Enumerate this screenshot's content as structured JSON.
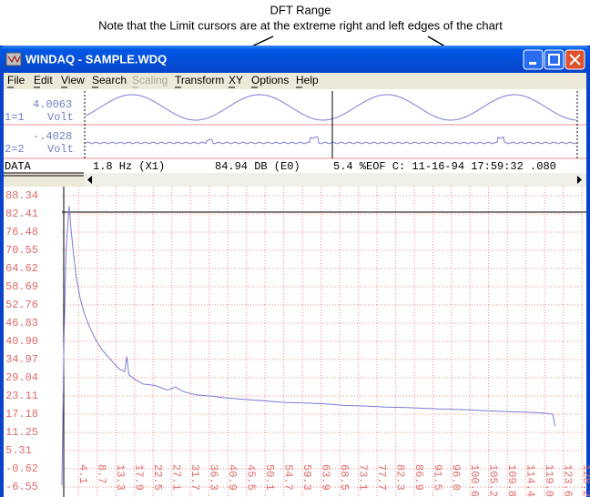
{
  "annotation": {
    "title": "DFT Range",
    "note": "Note that the Limit cursors are at the extreme right and left edges of the chart"
  },
  "window": {
    "title": "WINDAQ - SAMPLE.WDQ",
    "menu": [
      "File",
      "Edit",
      "View",
      "Search",
      "Scaling",
      "Transform",
      "XY",
      "Options",
      "Help"
    ],
    "channels": [
      {
        "id": "1=1",
        "value": "4.0063",
        "unit": "Volt"
      },
      {
        "id": "2=2",
        "value": "-.4028",
        "unit": "Volt"
      }
    ],
    "status": {
      "label": "DATA",
      "frequency": "1.8 Hz (X1)",
      "magnitude": "84.94 DB (E0)",
      "info": "5.4 %EOF C: 11-16-94 17:59:32 .080"
    }
  },
  "chart_data": {
    "type": "line",
    "color": "#7b7bd6",
    "grid": true,
    "xlim": [
      0,
      128.4
    ],
    "ylim": [
      -6.55,
      88.34
    ],
    "yticks": [
      88.34,
      82.41,
      76.48,
      70.55,
      64.62,
      58.69,
      52.76,
      46.83,
      {
        "value": 40.9,
        "label": "40.90"
      },
      34.97,
      29.04,
      23.11,
      17.18,
      11.25,
      5.31,
      -0.62,
      -6.55
    ],
    "xticks": [
      4.1,
      8.7,
      13.3,
      17.9,
      22.5,
      27.1,
      31.7,
      36.3,
      40.9,
      45.5,
      50.1,
      54.7,
      59.3,
      63.9,
      68.5,
      73.1,
      77.7,
      82.3,
      86.9,
      91.5,
      {
        "value": 96,
        "label": "96.0"
      },
      100.6,
      105.2,
      109.8,
      114.4,
      {
        "value": 119,
        "label": "119.0"
      },
      123.6,
      128.2
    ],
    "x": [
      0,
      0.5,
      1.0,
      1.5,
      1.8,
      2.2,
      2.8,
      3.5,
      4.5,
      5.5,
      7,
      8.5,
      10,
      12,
      14,
      15.5,
      16,
      16.5,
      18,
      20,
      23,
      26,
      28,
      30,
      33,
      37,
      40,
      45,
      50,
      55,
      60,
      65,
      70,
      75,
      80,
      85,
      90,
      95,
      100,
      105,
      110,
      115,
      119,
      121,
      121.6
    ],
    "values": [
      -6.0,
      40,
      70,
      80,
      84.94,
      78,
      70,
      62,
      55,
      50,
      45,
      41,
      38,
      35,
      32,
      31,
      36,
      30,
      28.5,
      27,
      26.5,
      25,
      26,
      24.5,
      23.5,
      23,
      22.5,
      22,
      21.5,
      21,
      20.8,
      20.5,
      20,
      19.8,
      19.5,
      19.3,
      19,
      18.8,
      18.6,
      18.3,
      18,
      17.8,
      17.5,
      17.2,
      13.3
    ]
  }
}
